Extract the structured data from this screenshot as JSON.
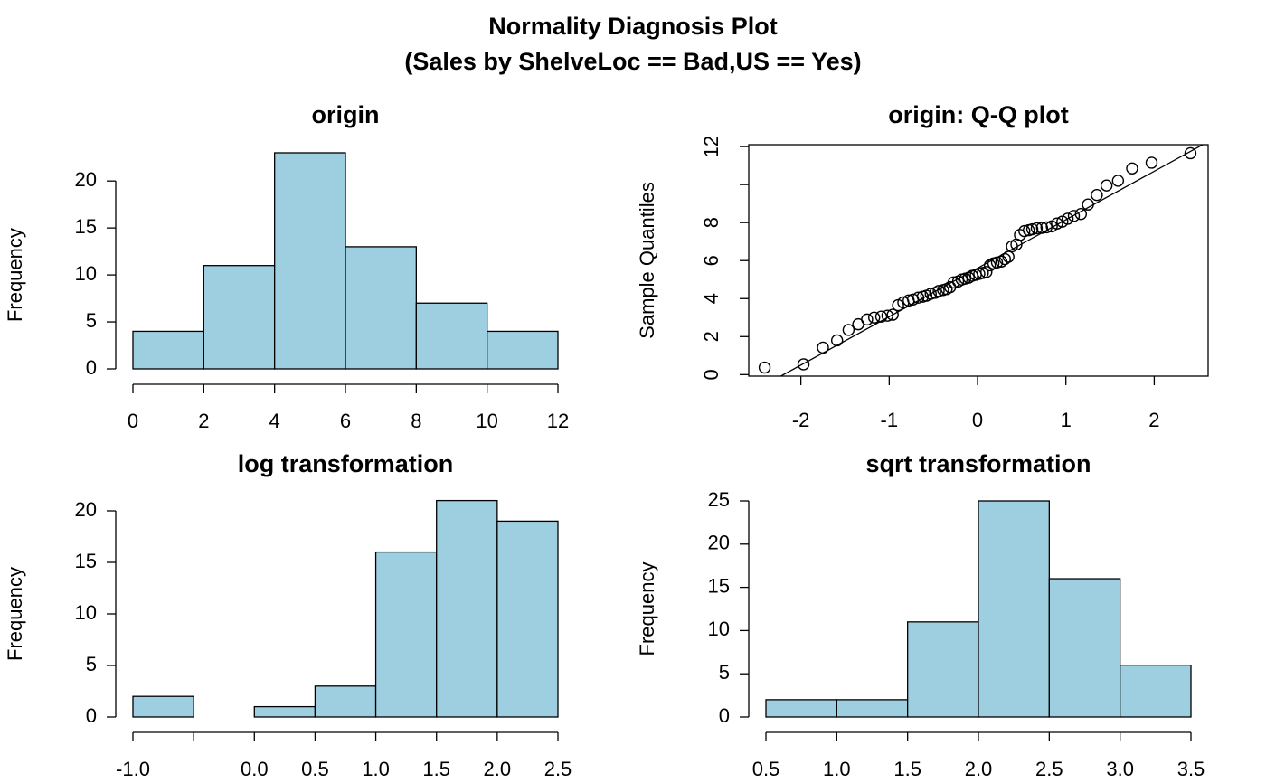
{
  "title": [
    "Normality Diagnosis Plot",
    "(Sales by ShelveLoc == Bad,US == Yes)"
  ],
  "chart_data": [
    {
      "type": "histogram",
      "title": "origin",
      "y_label": "Frequency",
      "color": "#9ecfe0",
      "bins": [
        0,
        2,
        4,
        6,
        8,
        10,
        12
      ],
      "values": [
        4,
        11,
        23,
        13,
        7,
        4
      ],
      "xlim": [
        0,
        12
      ],
      "ylim": [
        0,
        23
      ],
      "xticks": [
        0,
        2,
        4,
        6,
        8,
        10,
        12
      ],
      "yticks": [
        0,
        5,
        10,
        15,
        20
      ]
    },
    {
      "type": "scatter",
      "title": "origin: Q-Q plot",
      "y_label": "Sample Quantiles",
      "box": true,
      "x": [
        -2.41,
        -1.97,
        -1.75,
        -1.59,
        -1.46,
        -1.35,
        -1.25,
        -1.17,
        -1.09,
        -1.02,
        -0.96,
        -0.9,
        -0.84,
        -0.78,
        -0.73,
        -0.67,
        -0.62,
        -0.58,
        -0.53,
        -0.48,
        -0.44,
        -0.39,
        -0.35,
        -0.31,
        -0.27,
        -0.22,
        -0.18,
        -0.14,
        -0.1,
        -0.06,
        -0.02,
        0.02,
        0.06,
        0.1,
        0.14,
        0.18,
        0.22,
        0.27,
        0.31,
        0.35,
        0.39,
        0.44,
        0.48,
        0.53,
        0.58,
        0.62,
        0.67,
        0.73,
        0.78,
        0.84,
        0.9,
        0.96,
        1.02,
        1.09,
        1.17,
        1.25,
        1.35,
        1.46,
        1.59,
        1.75,
        1.97,
        2.41
      ],
      "values": [
        0.37,
        0.54,
        1.42,
        1.8,
        2.35,
        2.65,
        2.9,
        3.0,
        3.05,
        3.1,
        3.15,
        3.65,
        3.8,
        3.9,
        3.95,
        4.05,
        4.1,
        4.15,
        4.25,
        4.3,
        4.4,
        4.45,
        4.5,
        4.6,
        4.85,
        4.9,
        5.0,
        5.05,
        5.1,
        5.2,
        5.25,
        5.3,
        5.35,
        5.4,
        5.75,
        5.85,
        5.9,
        5.95,
        6.08,
        6.2,
        6.75,
        6.85,
        7.35,
        7.55,
        7.6,
        7.65,
        7.7,
        7.72,
        7.75,
        7.8,
        7.95,
        8.05,
        8.2,
        8.35,
        8.45,
        8.95,
        9.45,
        9.95,
        10.2,
        10.85,
        11.15,
        11.65
      ],
      "qqline": {
        "intercept": 5.6,
        "slope": 2.55
      },
      "xlim": [
        -2.59,
        2.61
      ],
      "ylim": [
        -0.08,
        12.1
      ],
      "xticks": [
        -2,
        -1,
        0,
        1,
        2
      ],
      "yticks": [
        0,
        2,
        4,
        6,
        8,
        {
          "value": 10,
          "label": null
        },
        12
      ]
    },
    {
      "type": "histogram",
      "title": "log transformation",
      "y_label": "Frequency",
      "color": "#9ecfe0",
      "bins": [
        -1,
        -0.5,
        0,
        0.5,
        1,
        1.5,
        2,
        2.5
      ],
      "values": [
        2,
        0,
        1,
        3,
        16,
        21,
        19
      ],
      "xlim": [
        -1,
        2.5
      ],
      "ylim": [
        0,
        21
      ],
      "xticks": [
        {
          "value": -1,
          "label": "-1.0"
        },
        {
          "value": -0.5,
          "label": null
        },
        {
          "value": 0,
          "label": "0.0"
        },
        0.5,
        {
          "value": 1,
          "label": "1.0"
        },
        1.5,
        {
          "value": 2,
          "label": "2.0"
        },
        2.5
      ],
      "yticks": [
        0,
        5,
        10,
        15,
        20
      ]
    },
    {
      "type": "histogram",
      "title": "sqrt transformation",
      "y_label": "Frequency",
      "color": "#9ecfe0",
      "bins": [
        0.5,
        1,
        1.5,
        2,
        2.5,
        3,
        3.5
      ],
      "values": [
        2,
        2,
        11,
        25,
        16,
        6
      ],
      "xlim": [
        0.5,
        3.5
      ],
      "ylim": [
        0,
        25
      ],
      "xticks": [
        0.5,
        {
          "value": 1,
          "label": "1.0"
        },
        1.5,
        {
          "value": 2,
          "label": "2.0"
        },
        2.5,
        {
          "value": 3,
          "label": "3.0"
        },
        3.5
      ],
      "yticks": [
        0,
        5,
        10,
        15,
        20,
        25
      ]
    }
  ]
}
